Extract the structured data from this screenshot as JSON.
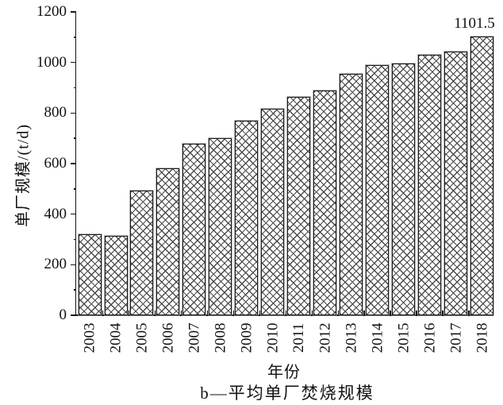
{
  "chart_data": {
    "type": "bar",
    "title": "",
    "categories": [
      "2003",
      "2004",
      "2005",
      "2006",
      "2007",
      "2008",
      "2009",
      "2010",
      "2011",
      "2012",
      "2013",
      "2014",
      "2015",
      "2016",
      "2017",
      "2018"
    ],
    "values": [
      320,
      313,
      492,
      581,
      679,
      701,
      770,
      818,
      865,
      890,
      955,
      991,
      997,
      1030,
      1043,
      1101.5
    ],
    "xlabel": "年份",
    "ylabel": "单厂规模/(t/d)",
    "ylim": [
      0,
      1200
    ],
    "ytick_major_step": 200,
    "ytick_minor_step": 100,
    "ytick_labels": [
      "0",
      "200",
      "400",
      "600",
      "800",
      "1000",
      "1200"
    ],
    "grid": "off",
    "legend": "none",
    "bar_style": "white fill with gray diagonal crosshatch, black outline",
    "annotation": {
      "text": "1101.5",
      "category": "2018"
    },
    "caption": "b—平均单厂焚烧规模",
    "axis_color": "#151515",
    "hatch_color": "#4a4a4a"
  }
}
